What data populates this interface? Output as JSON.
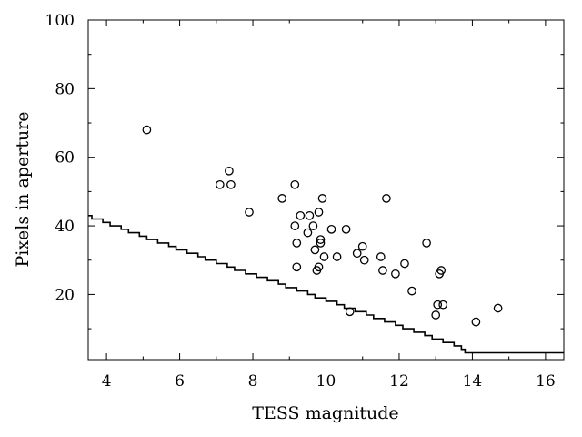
{
  "chart_data": {
    "type": "scatter",
    "title": "",
    "xlabel": "TESS magnitude",
    "ylabel": "Pixels in aperture",
    "xlim": [
      3.5,
      16.5
    ],
    "ylim": [
      1,
      100
    ],
    "xticks": [
      4,
      6,
      8,
      10,
      12,
      14,
      16
    ],
    "yticks": [
      20,
      40,
      60,
      80,
      100
    ],
    "x_minor_ticks": [
      5,
      7,
      9,
      11,
      13,
      15
    ],
    "y_minor_ticks": [
      10,
      30,
      50,
      70,
      90
    ],
    "grid": false,
    "legend": "none",
    "series": [
      {
        "type": "scatter",
        "marker": "open-circle",
        "color": "#000000",
        "points": [
          [
            5.1,
            68
          ],
          [
            7.1,
            52
          ],
          [
            7.35,
            56
          ],
          [
            7.4,
            52
          ],
          [
            7.9,
            44
          ],
          [
            8.8,
            48
          ],
          [
            9.15,
            52
          ],
          [
            9.15,
            40
          ],
          [
            9.2,
            28
          ],
          [
            9.2,
            35
          ],
          [
            9.3,
            43
          ],
          [
            9.5,
            38
          ],
          [
            9.55,
            43
          ],
          [
            9.65,
            40
          ],
          [
            9.7,
            33
          ],
          [
            9.75,
            27
          ],
          [
            9.8,
            28
          ],
          [
            9.8,
            44
          ],
          [
            9.85,
            36
          ],
          [
            9.85,
            35
          ],
          [
            9.9,
            48
          ],
          [
            9.95,
            31
          ],
          [
            10.15,
            39
          ],
          [
            10.3,
            31
          ],
          [
            10.55,
            39
          ],
          [
            10.65,
            15
          ],
          [
            10.85,
            32
          ],
          [
            11.0,
            34
          ],
          [
            11.05,
            30
          ],
          [
            11.5,
            31
          ],
          [
            11.55,
            27
          ],
          [
            11.65,
            48
          ],
          [
            11.9,
            26
          ],
          [
            12.15,
            29
          ],
          [
            12.35,
            21
          ],
          [
            12.75,
            35
          ],
          [
            13.0,
            14
          ],
          [
            13.05,
            17
          ],
          [
            13.1,
            26
          ],
          [
            13.15,
            27
          ],
          [
            13.2,
            17
          ],
          [
            14.1,
            12
          ],
          [
            14.7,
            16
          ]
        ]
      },
      {
        "type": "step-line",
        "color": "#000000",
        "points": [
          [
            3.5,
            43
          ],
          [
            3.6,
            42
          ],
          [
            3.9,
            41
          ],
          [
            4.1,
            40
          ],
          [
            4.4,
            39
          ],
          [
            4.6,
            38
          ],
          [
            4.9,
            37
          ],
          [
            5.1,
            36
          ],
          [
            5.4,
            35
          ],
          [
            5.7,
            34
          ],
          [
            5.9,
            33
          ],
          [
            6.2,
            32
          ],
          [
            6.5,
            31
          ],
          [
            6.7,
            30
          ],
          [
            7.0,
            29
          ],
          [
            7.3,
            28
          ],
          [
            7.5,
            27
          ],
          [
            7.8,
            26
          ],
          [
            8.1,
            25
          ],
          [
            8.4,
            24
          ],
          [
            8.7,
            23
          ],
          [
            8.9,
            22
          ],
          [
            9.2,
            21
          ],
          [
            9.5,
            20
          ],
          [
            9.7,
            19
          ],
          [
            10.0,
            18
          ],
          [
            10.3,
            17
          ],
          [
            10.5,
            16
          ],
          [
            10.8,
            15
          ],
          [
            11.1,
            14
          ],
          [
            11.3,
            13
          ],
          [
            11.6,
            12
          ],
          [
            11.9,
            11
          ],
          [
            12.1,
            10
          ],
          [
            12.4,
            9
          ],
          [
            12.7,
            8
          ],
          [
            12.9,
            7
          ],
          [
            13.2,
            6
          ],
          [
            13.5,
            5
          ],
          [
            13.7,
            4
          ],
          [
            13.8,
            3
          ],
          [
            16.5,
            3
          ]
        ]
      }
    ]
  }
}
